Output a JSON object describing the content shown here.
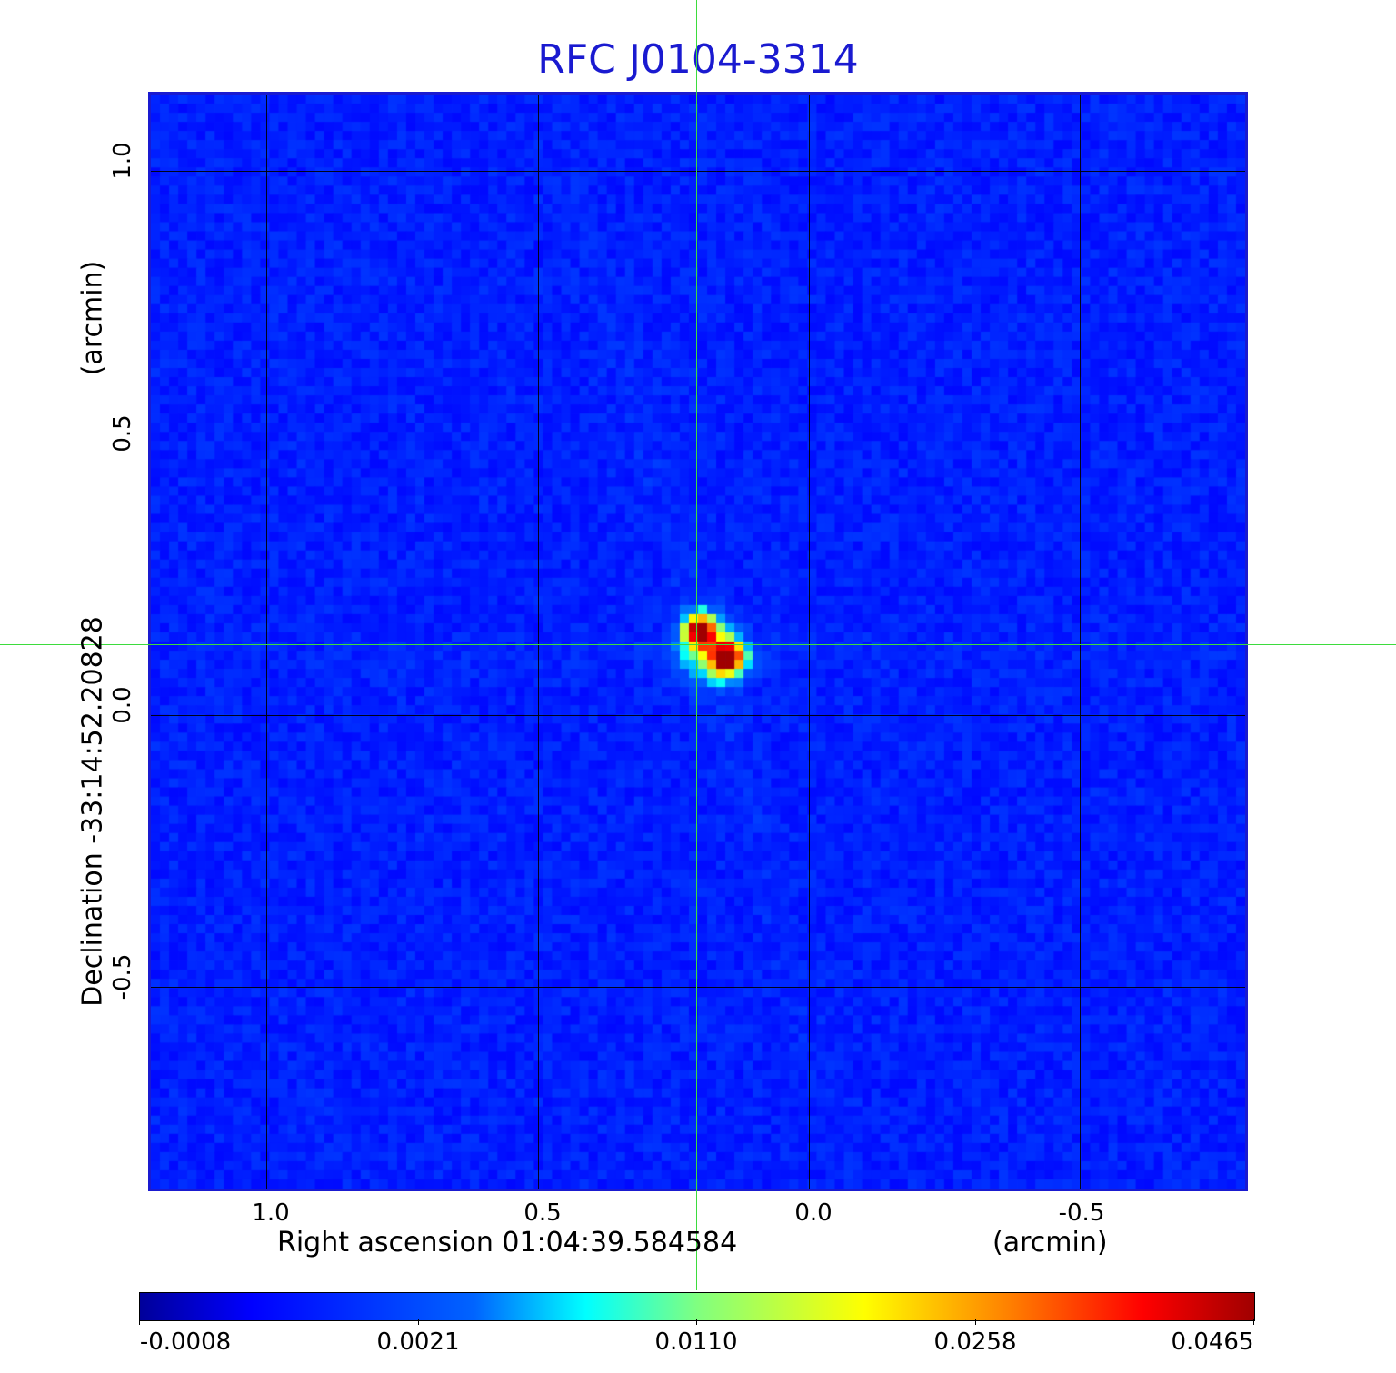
{
  "title": "RFC J0104-3314",
  "x_axis": {
    "label": "Right ascension  01:04:39.584584",
    "unit": "(arcmin)",
    "ticks": [
      "1.0",
      "0.5",
      "0.0",
      "-0.5"
    ]
  },
  "y_axis": {
    "label": "Declination  -33:14:52.20828",
    "unit": "(arcmin)",
    "ticks": [
      "1.0",
      "0.5",
      "0.0",
      "-0.5"
    ]
  },
  "colorbar": {
    "ticks": [
      "-0.0008",
      "0.0021",
      "0.0110",
      "0.0258",
      "0.0465"
    ]
  },
  "colors": {
    "title": "#1a1ad0",
    "frame": "#1a1ad0",
    "crosshair": "#3ddc3d"
  }
}
